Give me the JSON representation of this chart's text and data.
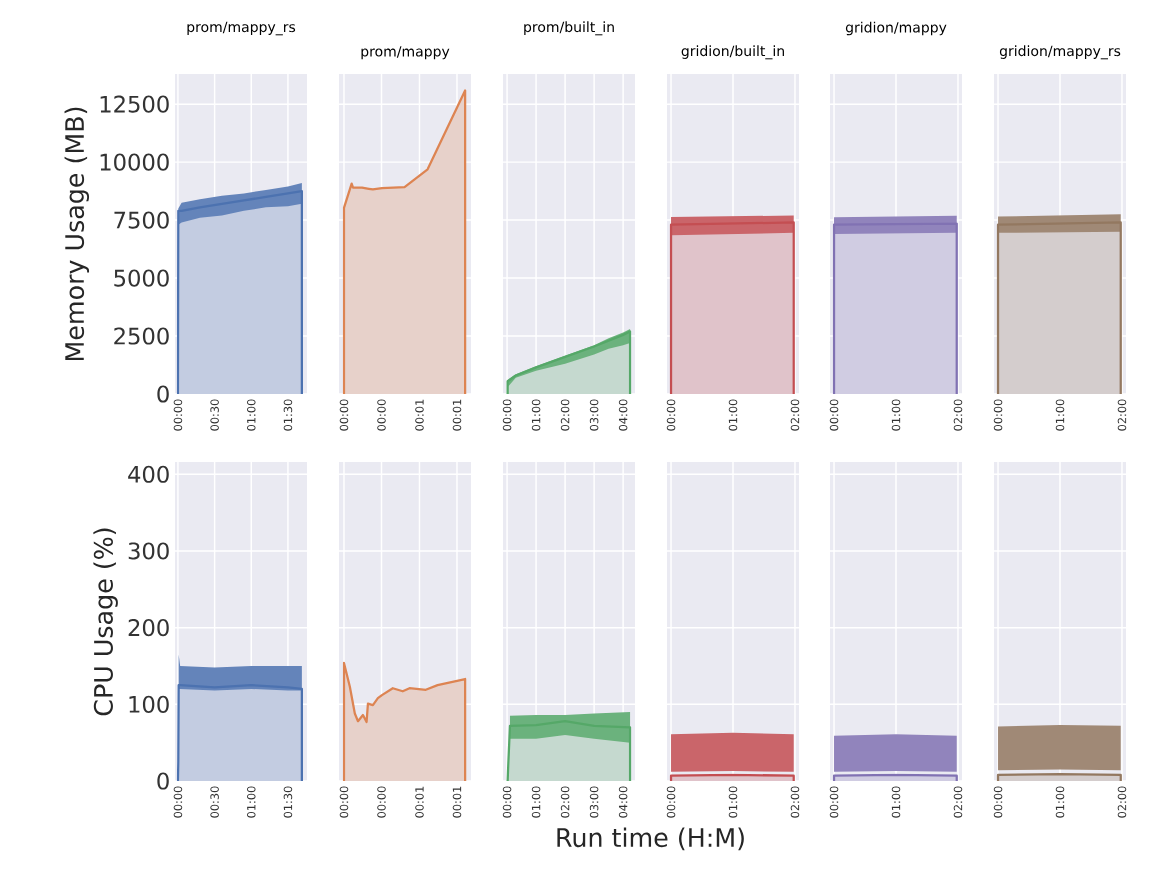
{
  "chart_data": [
    {
      "type": "area",
      "title": "prom/mappy_rs",
      "ylabel": "Memory Usage (MB)",
      "grid": true,
      "xlim": [
        -0.04,
        1.76
      ],
      "xticks": [
        {
          "value": 0,
          "label": "00:00"
        },
        {
          "value": 0.5,
          "label": "00:30"
        },
        {
          "value": 1,
          "label": "01:00"
        },
        {
          "value": 1.5,
          "label": "01:30"
        }
      ],
      "ylim": [
        0,
        13800
      ],
      "yticks": [
        0,
        2500,
        5000,
        7500,
        10000,
        12500
      ],
      "series": [
        {
          "color": "#4c72b0",
          "x": [
            0,
            0.005,
            0.05,
            0.3,
            0.6,
            0.9,
            1.2,
            1.5,
            1.69,
            1.69
          ],
          "values": [
            0,
            7900,
            7900,
            8050,
            8200,
            8350,
            8500,
            8650,
            8750,
            0
          ],
          "lower": [
            null,
            7300,
            7400,
            7600,
            7700,
            7900,
            8050,
            8100,
            8200,
            null
          ],
          "upper": [
            null,
            8000,
            8250,
            8400,
            8550,
            8650,
            8800,
            8950,
            9100,
            null
          ]
        }
      ]
    },
    {
      "type": "area",
      "title": "prom/mappy",
      "grid": true,
      "tick_labels": "x",
      "xlim": [
        -0.0011,
        0.0281
      ],
      "xticks": [
        {
          "value": 0,
          "label": "00:00"
        },
        {
          "value": 0.0083,
          "label": "00:00"
        },
        {
          "value": 0.0167,
          "label": "00:01"
        },
        {
          "value": 0.025,
          "label": "00:01"
        }
      ],
      "ylim": [
        0,
        13800
      ],
      "yticks": [
        0,
        2500,
        5000,
        7500,
        10000,
        12500
      ],
      "series": [
        {
          "color": "#dd8452",
          "x": [
            0,
            0,
            0.0017,
            0.002,
            0.004,
            0.0055,
            0.0064,
            0.0084,
            0.0134,
            0.0185,
            0.0268,
            0.0268
          ],
          "values": [
            0,
            8030,
            9070,
            8900,
            8900,
            8850,
            8820,
            8880,
            8920,
            9690,
            13090,
            0
          ]
        }
      ]
    },
    {
      "type": "area",
      "title": "prom/built_in",
      "grid": true,
      "tick_labels": "x",
      "xlim": [
        -0.14,
        4.41
      ],
      "xticks": [
        {
          "value": 0,
          "label": "00:00"
        },
        {
          "value": 1,
          "label": "01:00"
        },
        {
          "value": 2,
          "label": "02:00"
        },
        {
          "value": 3,
          "label": "03:00"
        },
        {
          "value": 4,
          "label": "04:00"
        }
      ],
      "ylim": [
        0,
        13800
      ],
      "yticks": [
        0,
        2500,
        5000,
        7500,
        10000,
        12500
      ],
      "series": [
        {
          "color": "#55a868",
          "x": [
            0.02,
            0.02,
            0.3,
            1,
            2,
            3,
            3.5,
            4,
            4.24,
            4.24
          ],
          "values": [
            0,
            550,
            800,
            1150,
            1600,
            2050,
            2300,
            2550,
            2700,
            0
          ],
          "lower": [
            null,
            300,
            700,
            1000,
            1300,
            1700,
            1950,
            2100,
            2200,
            null
          ],
          "upper": [
            null,
            600,
            850,
            1200,
            1650,
            2100,
            2400,
            2650,
            2800,
            null
          ]
        }
      ]
    },
    {
      "type": "area",
      "title": "gridion/built_in",
      "grid": true,
      "tick_labels": "x",
      "xlim": [
        -0.065,
        2.065
      ],
      "xticks": [
        {
          "value": 0,
          "label": "00:00"
        },
        {
          "value": 1,
          "label": "01:00"
        },
        {
          "value": 2,
          "label": "02:00"
        }
      ],
      "ylim": [
        0,
        13800
      ],
      "yticks": [
        0,
        2500,
        5000,
        7500,
        10000,
        12500
      ],
      "series": [
        {
          "color": "#c44e52",
          "x": [
            0,
            0,
            1.98,
            1.98
          ],
          "values": [
            0,
            7300,
            7400,
            0
          ],
          "lower": [
            null,
            6850,
            6950,
            null
          ],
          "upper": [
            null,
            7630,
            7700,
            null
          ]
        }
      ]
    },
    {
      "type": "area",
      "title": "gridion/mappy",
      "grid": true,
      "tick_labels": "x",
      "xlim": [
        -0.065,
        2.065
      ],
      "xticks": [
        {
          "value": 0,
          "label": "00:00"
        },
        {
          "value": 1,
          "label": "01:00"
        },
        {
          "value": 2,
          "label": "02:00"
        }
      ],
      "ylim": [
        0,
        13800
      ],
      "yticks": [
        0,
        2500,
        5000,
        7500,
        10000,
        12500
      ],
      "series": [
        {
          "color": "#8172b3",
          "x": [
            0,
            0,
            1.98,
            1.98
          ],
          "values": [
            0,
            7300,
            7350,
            0
          ],
          "lower": [
            null,
            6900,
            6950,
            null
          ],
          "upper": [
            null,
            7620,
            7690,
            null
          ]
        }
      ]
    },
    {
      "type": "area",
      "title": "gridion/mappy_rs",
      "grid": true,
      "tick_labels": "x",
      "xlim": [
        -0.065,
        2.065
      ],
      "xticks": [
        {
          "value": 0,
          "label": "00:00"
        },
        {
          "value": 1,
          "label": "01:00"
        },
        {
          "value": 2,
          "label": "02:00"
        }
      ],
      "ylim": [
        0,
        13800
      ],
      "yticks": [
        0,
        2500,
        5000,
        7500,
        10000,
        12500
      ],
      "series": [
        {
          "color": "#937860",
          "x": [
            0,
            0,
            1.98,
            1.98
          ],
          "values": [
            0,
            7300,
            7400,
            0
          ],
          "lower": [
            null,
            6950,
            7000,
            null
          ],
          "upper": [
            null,
            7650,
            7750,
            null
          ]
        }
      ]
    },
    {
      "type": "area",
      "ylabel": "CPU Usage (%)",
      "grid": true,
      "xlim": [
        -0.04,
        1.76
      ],
      "xticks": [
        {
          "value": 0,
          "label": "00:00"
        },
        {
          "value": 0.5,
          "label": "00:30"
        },
        {
          "value": 1,
          "label": "01:00"
        },
        {
          "value": 1.5,
          "label": "01:30"
        }
      ],
      "ylim": [
        0,
        416
      ],
      "yticks": [
        0,
        100,
        200,
        300,
        400
      ],
      "series": [
        {
          "color": "#4c72b0",
          "x": [
            0,
            0.005,
            0.01,
            0.03,
            0.5,
            1,
            1.5,
            1.69,
            1.69
          ],
          "values": [
            0,
            25,
            125,
            125,
            122,
            125,
            122,
            120,
            0
          ],
          "lower": [
            null,
            null,
            120,
            120,
            118,
            120,
            118,
            118,
            null
          ],
          "upper": [
            null,
            null,
            165,
            150,
            148,
            150,
            150,
            150,
            null
          ]
        }
      ]
    },
    {
      "type": "area",
      "grid": true,
      "tick_labels": "x",
      "xlim": [
        -0.0011,
        0.0281
      ],
      "xticks": [
        {
          "value": 0,
          "label": "00:00"
        },
        {
          "value": 0.0083,
          "label": "00:00"
        },
        {
          "value": 0.0167,
          "label": "00:01"
        },
        {
          "value": 0.025,
          "label": "00:01"
        }
      ],
      "ylim": [
        0,
        416
      ],
      "yticks": [
        0,
        100,
        200,
        300,
        400
      ],
      "series": [
        {
          "color": "#dd8452",
          "x": [
            0,
            0,
            0.0013,
            0.0024,
            0.0031,
            0.0042,
            0.005,
            0.0053,
            0.0064,
            0.0075,
            0.0084,
            0.0108,
            0.013,
            0.0145,
            0.0181,
            0.0207,
            0.0268,
            0.0268
          ],
          "values": [
            0,
            154,
            123,
            88,
            78,
            86,
            77,
            101,
            99,
            108,
            112,
            121,
            117,
            121,
            119,
            125,
            133,
            0
          ]
        }
      ]
    },
    {
      "type": "area",
      "grid": true,
      "tick_labels": "x",
      "xlim": [
        -0.14,
        4.41
      ],
      "xticks": [
        {
          "value": 0,
          "label": "00:00"
        },
        {
          "value": 1,
          "label": "01:00"
        },
        {
          "value": 2,
          "label": "02:00"
        },
        {
          "value": 3,
          "label": "03:00"
        },
        {
          "value": 4,
          "label": "04:00"
        }
      ],
      "ylim": [
        0,
        416
      ],
      "yticks": [
        0,
        100,
        200,
        300,
        400
      ],
      "series": [
        {
          "color": "#55a868",
          "x": [
            0.02,
            0.04,
            0.1,
            1,
            2,
            3,
            4.24,
            4.24
          ],
          "values": [
            0,
            20,
            72,
            73,
            78,
            72,
            70,
            0
          ],
          "lower": [
            null,
            null,
            55,
            55,
            60,
            55,
            50,
            null
          ],
          "upper": [
            null,
            null,
            85,
            86,
            86,
            88,
            90,
            null
          ]
        }
      ]
    },
    {
      "type": "area",
      "xlabel": "Run time (H:M)",
      "grid": true,
      "tick_labels": "x",
      "xlim": [
        -0.065,
        2.065
      ],
      "xticks": [
        {
          "value": 0,
          "label": "00:00"
        },
        {
          "value": 1,
          "label": "01:00"
        },
        {
          "value": 2,
          "label": "02:00"
        }
      ],
      "ylim": [
        0,
        416
      ],
      "yticks": [
        0,
        100,
        200,
        300,
        400
      ],
      "series": [
        {
          "color": "#c44e52",
          "x": [
            0,
            0,
            1,
            1.98,
            1.98
          ],
          "values": [
            0,
            7,
            8,
            7,
            0
          ],
          "lower": [
            null,
            12,
            13,
            12,
            null
          ],
          "upper": [
            null,
            61,
            63,
            61,
            null
          ]
        }
      ]
    },
    {
      "type": "area",
      "grid": true,
      "tick_labels": "x",
      "xlim": [
        -0.065,
        2.065
      ],
      "xticks": [
        {
          "value": 0,
          "label": "00:00"
        },
        {
          "value": 1,
          "label": "01:00"
        },
        {
          "value": 2,
          "label": "02:00"
        }
      ],
      "ylim": [
        0,
        416
      ],
      "yticks": [
        0,
        100,
        200,
        300,
        400
      ],
      "series": [
        {
          "color": "#8172b3",
          "x": [
            0,
            0,
            1,
            1.98,
            1.98
          ],
          "values": [
            0,
            7,
            8,
            7,
            0
          ],
          "lower": [
            null,
            12,
            13,
            12,
            null
          ],
          "upper": [
            null,
            59,
            61,
            59,
            null
          ]
        }
      ]
    },
    {
      "type": "area",
      "grid": true,
      "tick_labels": "x",
      "xlim": [
        -0.065,
        2.065
      ],
      "xticks": [
        {
          "value": 0,
          "label": "00:00"
        },
        {
          "value": 1,
          "label": "01:00"
        },
        {
          "value": 2,
          "label": "02:00"
        }
      ],
      "ylim": [
        0,
        416
      ],
      "yticks": [
        0,
        100,
        200,
        300,
        400
      ],
      "series": [
        {
          "color": "#937860",
          "x": [
            0,
            0,
            1,
            1.98,
            1.98
          ],
          "values": [
            0,
            8,
            9,
            8,
            0
          ],
          "lower": [
            null,
            14,
            15,
            14,
            null
          ],
          "upper": [
            null,
            71,
            73,
            72,
            null
          ]
        }
      ]
    }
  ]
}
